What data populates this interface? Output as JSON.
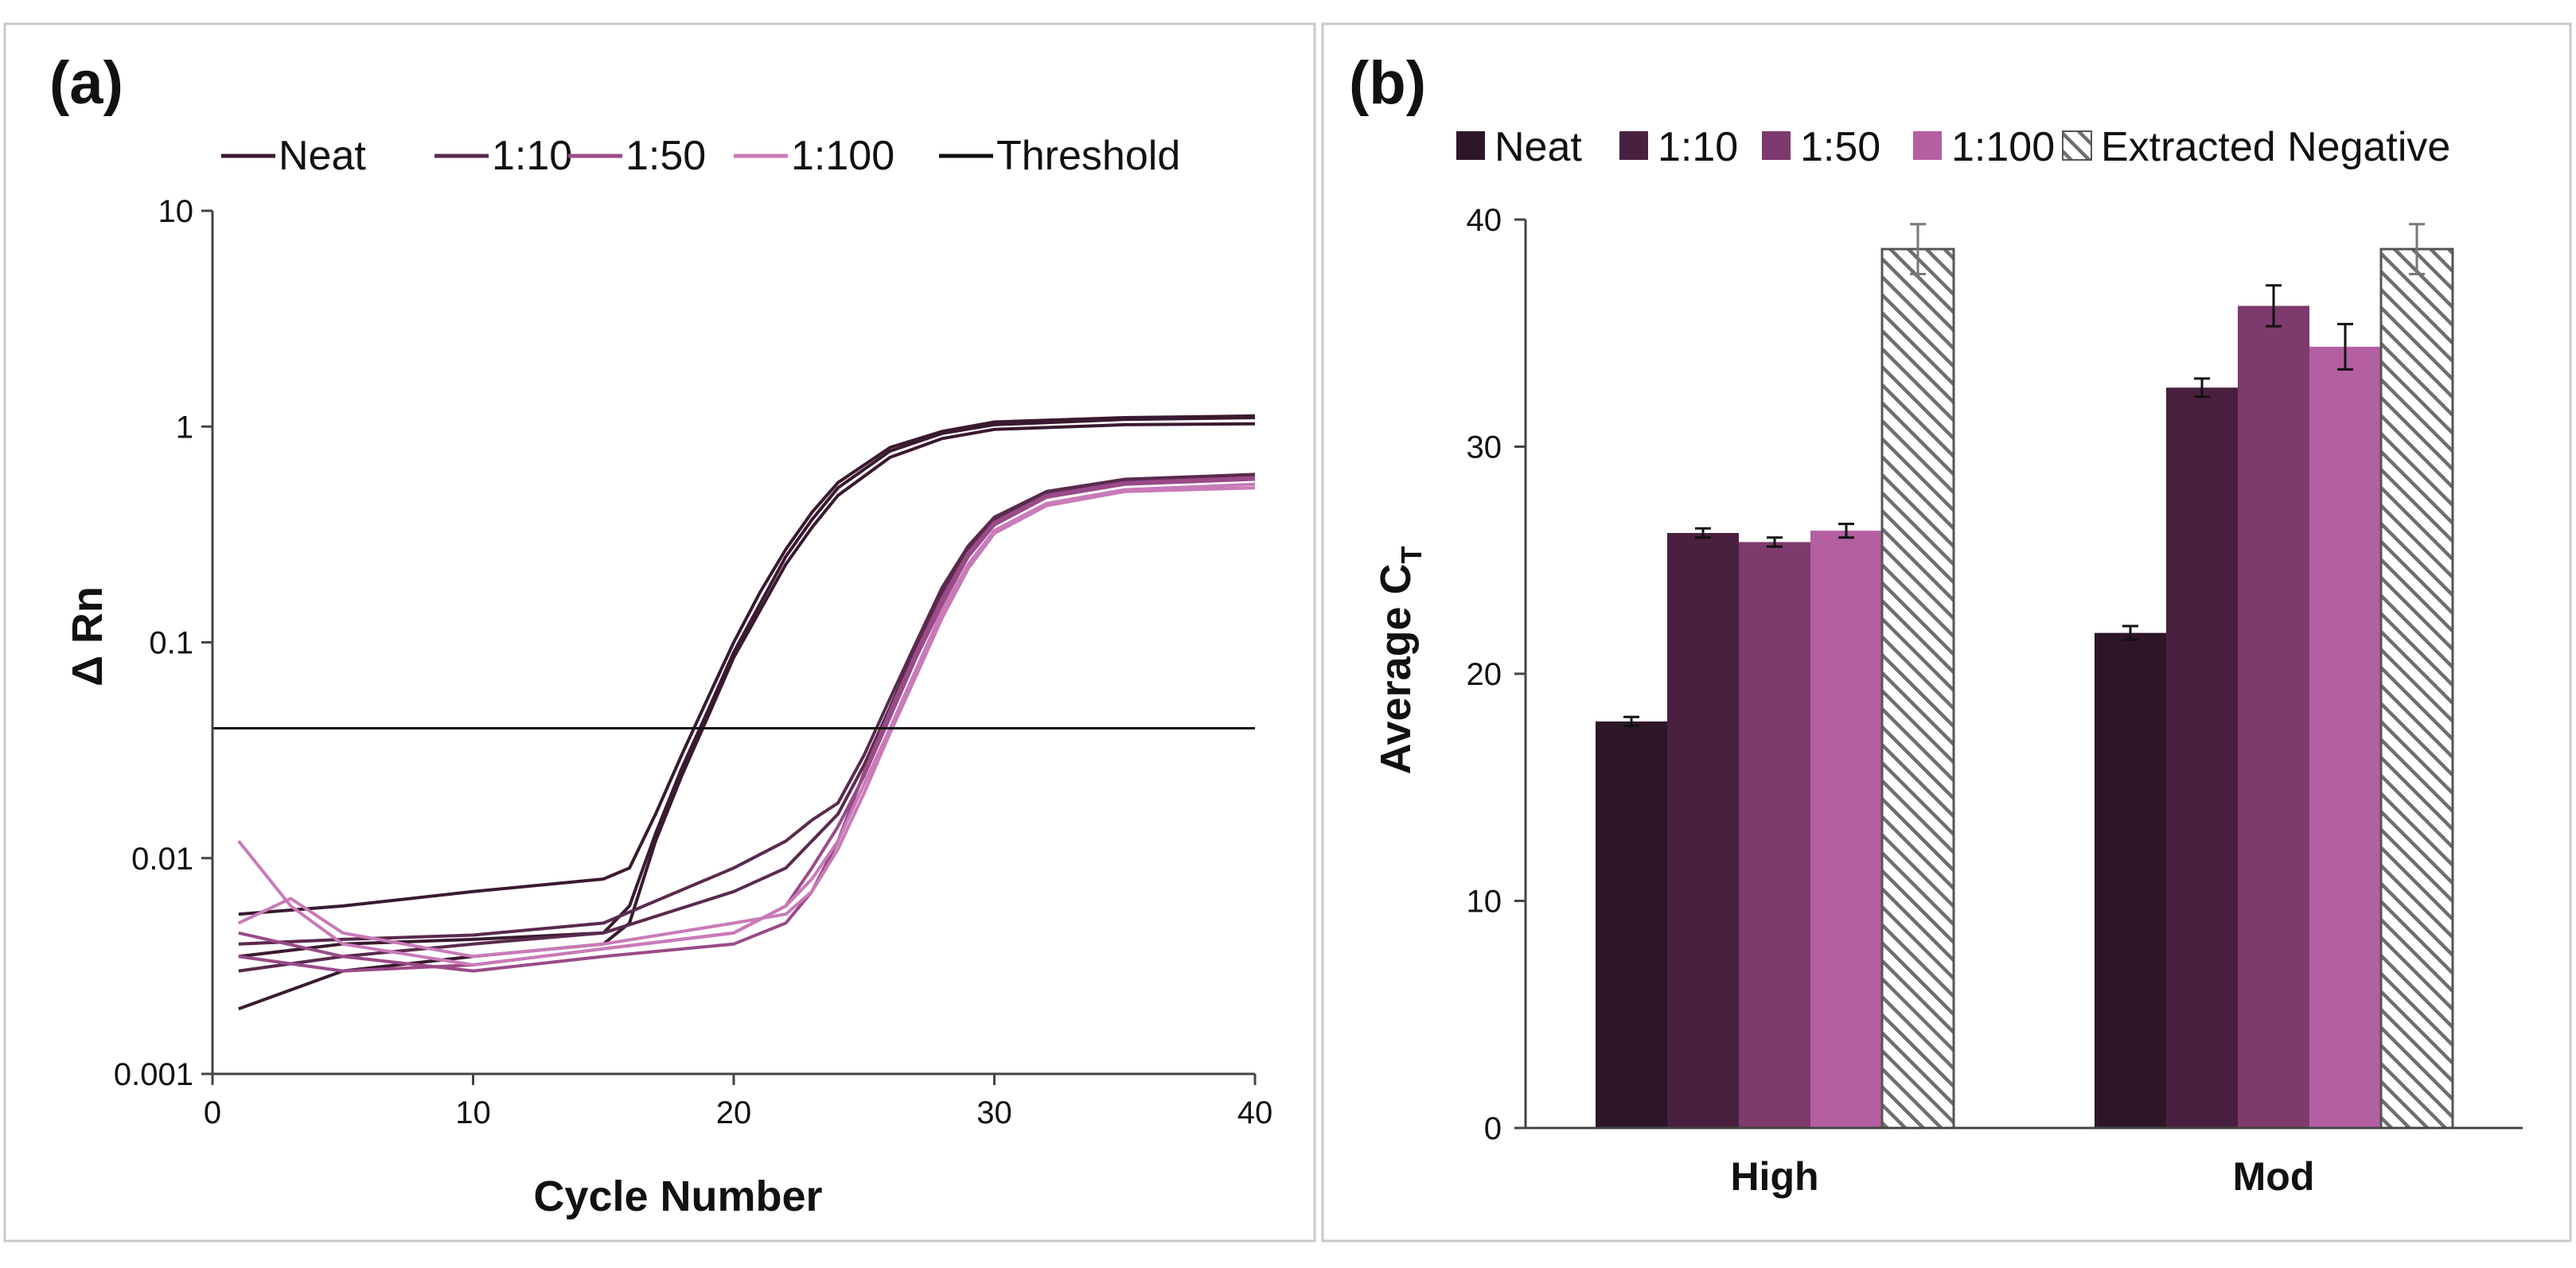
{
  "chart_data": [
    {
      "panel": "(a)",
      "type": "line",
      "xlabel": "Cycle Number",
      "ylabel": "Δ Rn",
      "yscale": "log",
      "xlim": [
        0,
        40
      ],
      "ylim": [
        0.001,
        10
      ],
      "x_ticks": [
        "0",
        "10",
        "20",
        "30",
        "40"
      ],
      "y_ticks": [
        "0.001",
        "0.01",
        "0.1",
        "1",
        "10"
      ],
      "legend": [
        {
          "name": "Neat",
          "color": "#3a1a30"
        },
        {
          "name": "1:10",
          "color": "#5a2a4e"
        },
        {
          "name": "1:50",
          "color": "#9a4a88"
        },
        {
          "name": "1:100",
          "color": "#c97ab8"
        },
        {
          "name": "Threshold",
          "color": "#111111"
        }
      ],
      "threshold": 0.04,
      "series": [
        {
          "name": "Neat",
          "color": "#3a1a30",
          "x": [
            1,
            5,
            10,
            15,
            16,
            17,
            18,
            19,
            20,
            21,
            22,
            23,
            24,
            26,
            28,
            30,
            35,
            40
          ],
          "y": [
            0.0055,
            0.006,
            0.007,
            0.008,
            0.009,
            0.016,
            0.03,
            0.055,
            0.1,
            0.17,
            0.27,
            0.4,
            0.55,
            0.8,
            0.95,
            1.05,
            1.1,
            1.12
          ]
        },
        {
          "name": "Neat",
          "color": "#3a1a30",
          "x": [
            1,
            5,
            10,
            15,
            16,
            17,
            18,
            19,
            20,
            21,
            22,
            23,
            24,
            26,
            28,
            30,
            35,
            40
          ],
          "y": [
            0.0035,
            0.004,
            0.0042,
            0.0045,
            0.006,
            0.013,
            0.026,
            0.048,
            0.09,
            0.15,
            0.25,
            0.37,
            0.52,
            0.77,
            0.93,
            1.02,
            1.08,
            1.1
          ]
        },
        {
          "name": "Neat",
          "color": "#3a1a30",
          "x": [
            1,
            5,
            10,
            15,
            16,
            17,
            18,
            19,
            20,
            21,
            22,
            23,
            24,
            26,
            28,
            30,
            35,
            40
          ],
          "y": [
            0.002,
            0.003,
            0.0035,
            0.004,
            0.005,
            0.012,
            0.024,
            0.045,
            0.085,
            0.14,
            0.23,
            0.34,
            0.48,
            0.72,
            0.88,
            0.97,
            1.02,
            1.03
          ]
        },
        {
          "name": "1:10",
          "color": "#5a2a4e",
          "x": [
            1,
            5,
            10,
            15,
            20,
            22,
            23,
            24,
            25,
            26,
            27,
            28,
            29,
            30,
            32,
            35,
            40
          ],
          "y": [
            0.004,
            0.0042,
            0.0044,
            0.005,
            0.009,
            0.012,
            0.015,
            0.018,
            0.03,
            0.055,
            0.1,
            0.18,
            0.28,
            0.38,
            0.5,
            0.57,
            0.6
          ]
        },
        {
          "name": "1:10",
          "color": "#5a2a4e",
          "x": [
            1,
            5,
            10,
            15,
            20,
            22,
            23,
            24,
            25,
            26,
            27,
            28,
            29,
            30,
            32,
            35,
            40
          ],
          "y": [
            0.003,
            0.0035,
            0.004,
            0.0045,
            0.007,
            0.009,
            0.012,
            0.016,
            0.027,
            0.05,
            0.095,
            0.17,
            0.27,
            0.37,
            0.49,
            0.56,
            0.59
          ]
        },
        {
          "name": "1:50",
          "color": "#9a4a88",
          "x": [
            1,
            5,
            10,
            15,
            20,
            22,
            23,
            24,
            25,
            26,
            27,
            28,
            29,
            30,
            32,
            35,
            40
          ],
          "y": [
            0.0045,
            0.0035,
            0.003,
            0.0035,
            0.004,
            0.005,
            0.007,
            0.012,
            0.025,
            0.048,
            0.09,
            0.16,
            0.26,
            0.36,
            0.48,
            0.55,
            0.58
          ]
        },
        {
          "name": "1:50",
          "color": "#9a4a88",
          "x": [
            1,
            5,
            10,
            15,
            20,
            22,
            23,
            24,
            25,
            26,
            27,
            28,
            29,
            30,
            32,
            35,
            40
          ],
          "y": [
            0.0035,
            0.003,
            0.0032,
            0.0038,
            0.0045,
            0.006,
            0.009,
            0.014,
            0.024,
            0.045,
            0.085,
            0.15,
            0.25,
            0.35,
            0.47,
            0.54,
            0.57
          ]
        },
        {
          "name": "1:100",
          "color": "#c97ab8",
          "x": [
            1,
            3,
            5,
            10,
            15,
            20,
            22,
            23,
            24,
            25,
            26,
            27,
            28,
            29,
            30,
            32,
            35,
            40
          ],
          "y": [
            0.012,
            0.006,
            0.004,
            0.0032,
            0.0038,
            0.0045,
            0.006,
            0.008,
            0.012,
            0.022,
            0.04,
            0.075,
            0.14,
            0.23,
            0.33,
            0.44,
            0.51,
            0.54
          ]
        },
        {
          "name": "1:100",
          "color": "#c97ab8",
          "x": [
            1,
            3,
            5,
            10,
            15,
            20,
            22,
            23,
            24,
            25,
            26,
            27,
            28,
            29,
            30,
            32,
            35,
            40
          ],
          "y": [
            0.005,
            0.0065,
            0.0045,
            0.0035,
            0.004,
            0.005,
            0.0055,
            0.007,
            0.011,
            0.02,
            0.038,
            0.07,
            0.13,
            0.22,
            0.32,
            0.43,
            0.5,
            0.52
          ]
        }
      ]
    },
    {
      "panel": "(b)",
      "type": "bar",
      "ylabel": "Average C",
      "ylabel_sub": "T",
      "ylim": [
        0,
        40
      ],
      "y_ticks": [
        "0",
        "10",
        "20",
        "30",
        "40"
      ],
      "categories": [
        "High",
        "Mod"
      ],
      "series": [
        {
          "name": "Neat",
          "color": "#2d1628",
          "values": [
            17.9,
            21.8
          ],
          "errors": [
            0.2,
            0.3
          ]
        },
        {
          "name": "1:10",
          "color": "#4a2040",
          "values": [
            26.2,
            32.6
          ],
          "errors": [
            0.2,
            0.4
          ]
        },
        {
          "name": "1:50",
          "color": "#7e3a6c",
          "values": [
            25.8,
            36.2
          ],
          "errors": [
            0.2,
            0.9
          ]
        },
        {
          "name": "1:100",
          "color": "#b45fa2",
          "values": [
            26.3,
            34.4
          ],
          "errors": [
            0.3,
            1.0
          ]
        },
        {
          "name": "Extracted Negative",
          "color": "hatched",
          "values": [
            38.7,
            38.7
          ],
          "errors": [
            1.1,
            1.1
          ]
        }
      ]
    }
  ]
}
